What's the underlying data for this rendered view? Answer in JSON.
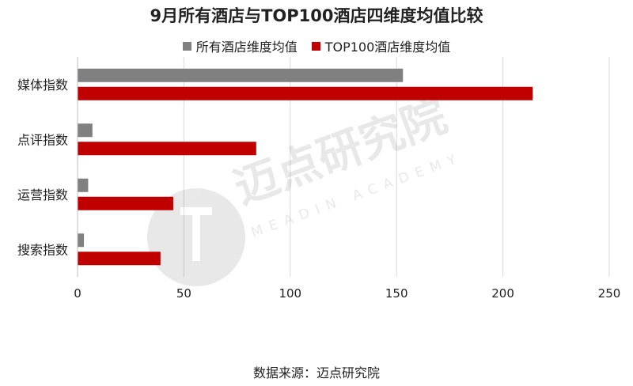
{
  "chart_data": {
    "type": "bar",
    "orientation": "horizontal",
    "title": "9月所有酒店与TOP100酒店四维度均值比较",
    "categories": [
      "媒体指数",
      "点评指数",
      "运营指数",
      "搜索指数"
    ],
    "series": [
      {
        "name": "所有酒店维度均值",
        "color": "#808080",
        "values": [
          153,
          7,
          5,
          3
        ]
      },
      {
        "name": "TOP100酒店维度均值",
        "color": "#c00000",
        "values": [
          214,
          84,
          45,
          39
        ]
      }
    ],
    "xlim": [
      0,
      250
    ],
    "xticks": [
      0,
      50,
      100,
      150,
      200,
      250
    ],
    "grid": true,
    "legend_position": "top"
  },
  "watermark": {
    "text": "迈点研究院",
    "subtext": "MEADIN ACADEMY"
  },
  "source_note": "数据来源：迈点研究院"
}
